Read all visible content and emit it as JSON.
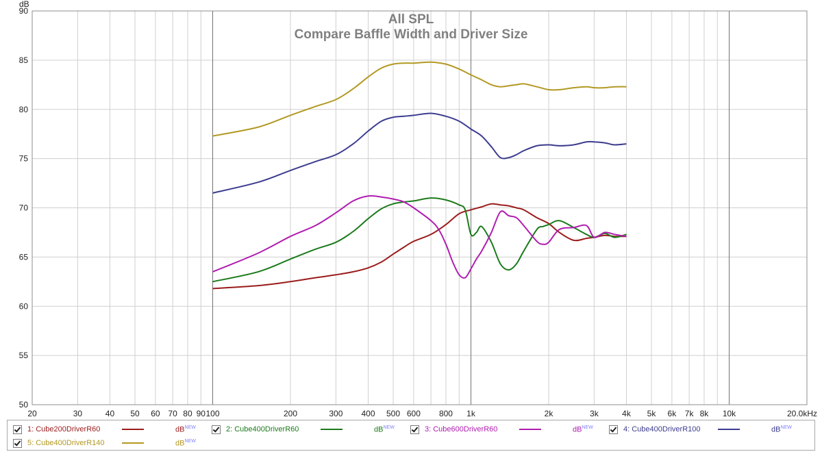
{
  "chart_data": {
    "type": "line",
    "title": "All SPL",
    "subtitle": "Compare Baffle Width and Driver Size",
    "y_unit_label": "dB",
    "x_scale": "log",
    "xlim": [
      20,
      20000
    ],
    "ylim": [
      50,
      90
    ],
    "y_ticks": [
      50,
      55,
      60,
      65,
      70,
      75,
      80,
      85,
      90
    ],
    "x_ticks": [
      {
        "value": 20,
        "label": "20"
      },
      {
        "value": 30,
        "label": "30"
      },
      {
        "value": 40,
        "label": "40"
      },
      {
        "value": 50,
        "label": "50"
      },
      {
        "value": 60,
        "label": "60"
      },
      {
        "value": 70,
        "label": "70"
      },
      {
        "value": 80,
        "label": "80"
      },
      {
        "value": 90,
        "label": "90"
      },
      {
        "value": 100,
        "label": "100"
      },
      {
        "value": 200,
        "label": "200"
      },
      {
        "value": 300,
        "label": "300"
      },
      {
        "value": 400,
        "label": "400"
      },
      {
        "value": 500,
        "label": "500"
      },
      {
        "value": 600,
        "label": "600"
      },
      {
        "value": 800,
        "label": "800"
      },
      {
        "value": 1000,
        "label": "1k"
      },
      {
        "value": 2000,
        "label": "2k"
      },
      {
        "value": 3000,
        "label": "3k"
      },
      {
        "value": 4000,
        "label": "4k"
      },
      {
        "value": 5000,
        "label": "5k"
      },
      {
        "value": 6000,
        "label": "6k"
      },
      {
        "value": 7000,
        "label": "7k"
      },
      {
        "value": 8000,
        "label": "8k"
      },
      {
        "value": 10000,
        "label": "10k"
      },
      {
        "value": 20000,
        "label": "20.0kHz"
      }
    ],
    "grid": true,
    "legend_position": "bottom",
    "series": [
      {
        "name": "1: Cube200DriverR60",
        "color": "#9b1b1b",
        "x": [
          100,
          150,
          200,
          250,
          300,
          350,
          400,
          450,
          500,
          550,
          600,
          700,
          800,
          900,
          1000,
          1100,
          1200,
          1300,
          1400,
          1500,
          1600,
          1800,
          2000,
          2200,
          2500,
          2800,
          3000,
          3300,
          3600,
          4000
        ],
        "y": [
          61.8,
          62.1,
          62.5,
          62.9,
          63.2,
          63.5,
          63.9,
          64.5,
          65.3,
          66.0,
          66.6,
          67.3,
          68.3,
          69.4,
          69.8,
          70.1,
          70.4,
          70.3,
          70.2,
          70.0,
          69.8,
          69.0,
          68.4,
          67.5,
          66.7,
          66.9,
          67.0,
          67.2,
          67.1,
          67.1
        ]
      },
      {
        "name": "2: Cube400DriverR60",
        "color": "#1a7a1a",
        "x": [
          100,
          150,
          200,
          250,
          300,
          350,
          400,
          450,
          500,
          550,
          600,
          700,
          800,
          900,
          950,
          1000,
          1050,
          1100,
          1200,
          1300,
          1400,
          1500,
          1600,
          1800,
          1900,
          2000,
          2200,
          2500,
          2800,
          3000,
          3300,
          3600,
          4000
        ],
        "y": [
          62.5,
          63.5,
          64.8,
          65.8,
          66.5,
          67.6,
          68.9,
          69.9,
          70.4,
          70.6,
          70.7,
          71.0,
          70.8,
          70.3,
          69.8,
          67.3,
          67.5,
          68.1,
          66.5,
          64.3,
          63.7,
          64.3,
          65.6,
          67.8,
          68.1,
          68.3,
          68.7,
          68.0,
          67.3,
          67.0,
          67.4,
          67.0,
          67.3
        ]
      },
      {
        "name": "3: Cube600DriverR60",
        "color": "#b01cb0",
        "x": [
          100,
          150,
          200,
          250,
          300,
          350,
          400,
          450,
          500,
          550,
          600,
          700,
          750,
          800,
          850,
          900,
          950,
          1000,
          1050,
          1100,
          1200,
          1300,
          1400,
          1500,
          1600,
          1800,
          1900,
          2000,
          2200,
          2500,
          2800,
          3000,
          3300,
          3600,
          4000
        ],
        "y": [
          63.5,
          65.4,
          67.1,
          68.2,
          69.5,
          70.7,
          71.2,
          71.1,
          70.9,
          70.6,
          70.0,
          68.7,
          67.8,
          66.3,
          64.5,
          63.2,
          62.9,
          63.8,
          64.8,
          65.6,
          67.5,
          69.6,
          69.2,
          69.0,
          68.2,
          66.6,
          66.3,
          66.5,
          67.8,
          68.0,
          68.2,
          67.0,
          67.5,
          67.3,
          67.1
        ]
      },
      {
        "name": "4: Cube400DriverR100",
        "color": "#3b3b8f",
        "x": [
          100,
          150,
          200,
          250,
          300,
          350,
          400,
          450,
          500,
          550,
          600,
          700,
          800,
          900,
          1000,
          1100,
          1200,
          1300,
          1400,
          1500,
          1600,
          1800,
          2000,
          2200,
          2500,
          2800,
          3000,
          3300,
          3600,
          4000
        ],
        "y": [
          71.5,
          72.6,
          73.8,
          74.7,
          75.4,
          76.5,
          77.8,
          78.8,
          79.2,
          79.3,
          79.4,
          79.6,
          79.3,
          78.8,
          78.0,
          77.3,
          76.2,
          75.1,
          75.1,
          75.4,
          75.8,
          76.3,
          76.4,
          76.3,
          76.4,
          76.7,
          76.7,
          76.6,
          76.4,
          76.5
        ]
      },
      {
        "name": "5: Cube400DriverR140",
        "color": "#b39822",
        "x": [
          100,
          150,
          200,
          250,
          300,
          350,
          400,
          450,
          500,
          550,
          600,
          700,
          800,
          900,
          1000,
          1100,
          1200,
          1300,
          1400,
          1500,
          1600,
          1800,
          2000,
          2200,
          2500,
          2800,
          3000,
          3300,
          3600,
          4000
        ],
        "y": [
          77.3,
          78.2,
          79.4,
          80.3,
          81.0,
          82.1,
          83.3,
          84.2,
          84.6,
          84.7,
          84.7,
          84.8,
          84.6,
          84.1,
          83.5,
          83.0,
          82.5,
          82.3,
          82.4,
          82.5,
          82.6,
          82.3,
          82.0,
          82.0,
          82.2,
          82.3,
          82.2,
          82.2,
          82.3,
          82.3
        ]
      }
    ]
  },
  "legend": {
    "unit_label": "dB",
    "unit_sup": "NEW",
    "items": [
      {
        "label": "1: Cube200DriverR60",
        "color": "#9b1b1b"
      },
      {
        "label": "2: Cube400DriverR60",
        "color": "#1a7a1a"
      },
      {
        "label": "3: Cube600DriverR60",
        "color": "#b01cb0"
      },
      {
        "label": "4: Cube400DriverR100",
        "color": "#3b3b8f"
      },
      {
        "label": "5: Cube400DriverR140",
        "color": "#b39822"
      }
    ]
  }
}
